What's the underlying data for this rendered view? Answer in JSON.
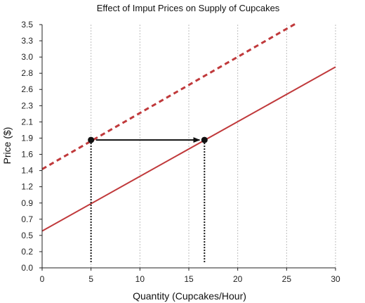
{
  "chart_data": {
    "type": "line",
    "title": "Effect of Imput Prices on Supply of Cupcakes",
    "xlabel": "Quantity (Cupcakes/Hour)",
    "ylabel": "Price ($)",
    "xlim": [
      0,
      30
    ],
    "ylim": [
      0,
      3.5
    ],
    "x_ticks": [
      "0",
      "5",
      "10",
      "15",
      "20",
      "25",
      "30"
    ],
    "x_tick_values": [
      0,
      5,
      10,
      15,
      20,
      25,
      30
    ],
    "y_ticks": [
      "0.0",
      "0.2",
      "0.5",
      "0.7",
      "0.9",
      "1.2",
      "1.4",
      "1.6",
      "1.9",
      "2.1",
      "2.3",
      "2.6",
      "2.8",
      "3.0",
      "3.3",
      "3.5"
    ],
    "y_tick_values": [
      0.0,
      0.233,
      0.467,
      0.7,
      0.933,
      1.167,
      1.4,
      1.633,
      1.867,
      2.1,
      2.333,
      2.567,
      2.8,
      3.033,
      3.267,
      3.5
    ],
    "grid": "vertical dotted",
    "series": [
      {
        "style": "dashed",
        "color": "#c0393b",
        "x": [
          0,
          26
        ],
        "y": [
          1.42,
          3.52
        ]
      },
      {
        "style": "solid",
        "color": "#c0393b",
        "x": [
          0,
          30
        ],
        "y": [
          0.53,
          2.89
        ]
      }
    ],
    "points": [
      {
        "x": 5,
        "y": 1.84
      },
      {
        "x": 16.6,
        "y": 1.84
      }
    ],
    "arrow": {
      "from": [
        5,
        1.84
      ],
      "to": [
        16.6,
        1.84
      ]
    },
    "drop_lines": [
      {
        "x": 5,
        "y": 1.84
      },
      {
        "x": 16.6,
        "y": 1.84
      }
    ]
  }
}
